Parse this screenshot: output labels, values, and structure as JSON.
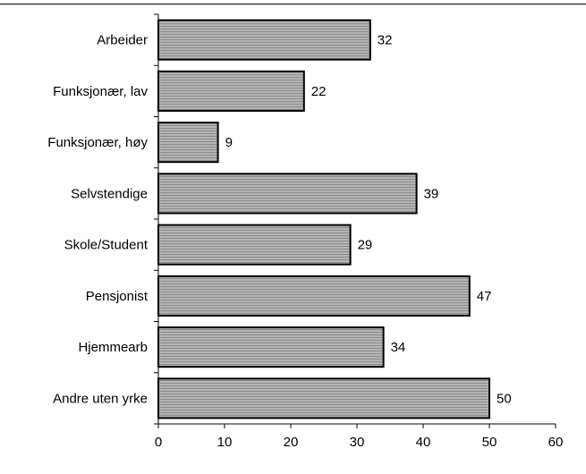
{
  "chart_data": {
    "type": "bar",
    "orientation": "horizontal",
    "categories": [
      "Arbeider",
      "Funksjonær, lav",
      "Funksjonær, høy",
      "Selvstendige",
      "Skole/Student",
      "Pensjonist",
      "Hjemmearb",
      "Andre uten yrke"
    ],
    "values": [
      32,
      22,
      9,
      39,
      29,
      47,
      34,
      50
    ],
    "data_labels": [
      "32",
      "22",
      "9",
      "39",
      "29",
      "47",
      "34",
      "50"
    ],
    "xlim": [
      0,
      60
    ],
    "x_ticks": [
      0,
      10,
      20,
      30,
      40,
      50,
      60
    ],
    "x_tick_labels": [
      "0",
      "10",
      "20",
      "30",
      "40",
      "50",
      "60"
    ],
    "title": "",
    "xlabel": "",
    "ylabel": "",
    "grid": false,
    "legend": "none",
    "bar_color": "#a8a8a8",
    "bar_edge_color": "#000000"
  }
}
